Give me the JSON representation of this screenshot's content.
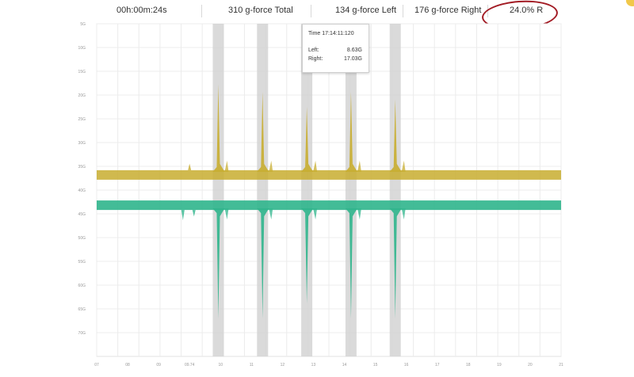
{
  "header": {
    "duration": "00h:00m:24s",
    "total": "310 g-force Total",
    "left": "134 g-force Left",
    "right": "176 g-force Right",
    "ratio": "24.0% R"
  },
  "tooltip": {
    "time": "Time 17:14:11:120",
    "left_label": "Left:",
    "left_value": "8.63G",
    "right_label": "Right:",
    "right_value": "17.03G"
  },
  "colors": {
    "left": "#c8ad2f",
    "right": "#2fb58c",
    "highlight": "#d3d3d3",
    "annotation": "#a21b24"
  },
  "chart_data": {
    "type": "area",
    "xlabel": "",
    "ylabel": "",
    "y_ticks": [
      "5G",
      "10G",
      "15G",
      "20G",
      "25G",
      "30G",
      "35G",
      "40G",
      "45G",
      "50G",
      "55G",
      "60G",
      "65G",
      "70G"
    ],
    "x_ticks": [
      "07",
      "08",
      "09",
      "09.74",
      "10",
      "11",
      "12",
      "13",
      "14",
      "15",
      "16",
      "17",
      "18",
      "19",
      "20",
      "21"
    ],
    "grid": true,
    "series": [
      {
        "name": "Left",
        "baseline": 2,
        "spikes": [
          {
            "x": 5.5,
            "peak": 14
          },
          {
            "x": 7.5,
            "peak": 13
          },
          {
            "x": 9.5,
            "peak": 11
          },
          {
            "x": 11.5,
            "peak": 13
          },
          {
            "x": 13.5,
            "peak": 12
          }
        ]
      },
      {
        "name": "Right",
        "baseline": -2,
        "spikes": [
          {
            "x": 5.5,
            "peak": -17
          },
          {
            "x": 7.5,
            "peak": -17
          },
          {
            "x": 9.5,
            "peak": -15
          },
          {
            "x": 11.5,
            "peak": -17
          },
          {
            "x": 13.5,
            "peak": -17
          }
        ]
      }
    ],
    "highlight_bands": [
      5.5,
      7.5,
      9.5,
      11.5,
      13.5
    ]
  }
}
